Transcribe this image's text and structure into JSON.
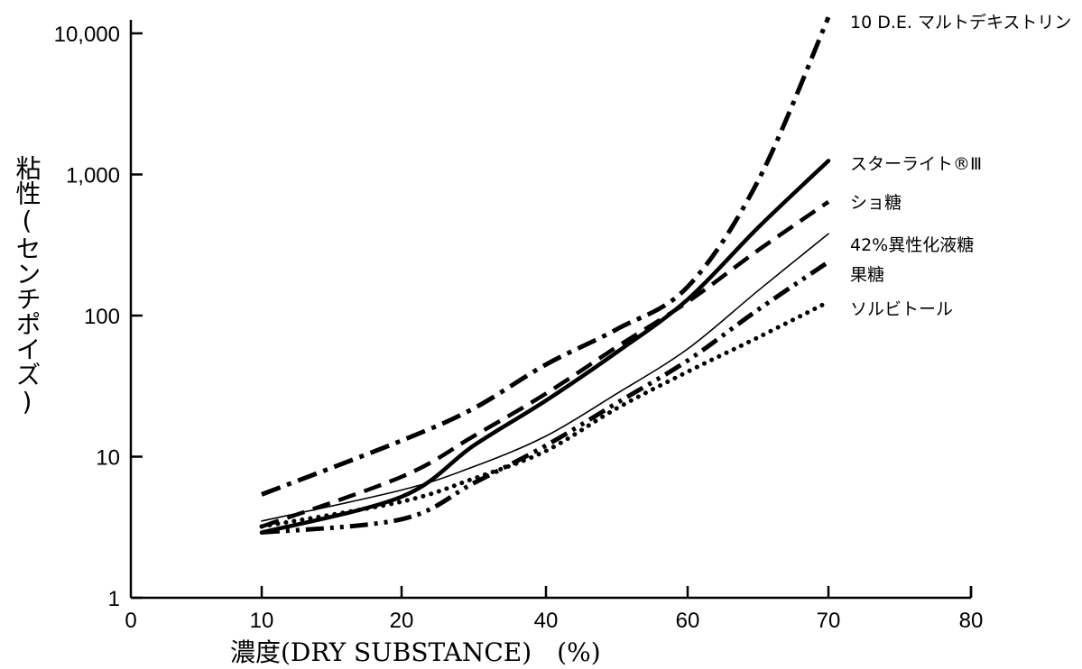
{
  "chart_data": {
    "type": "line",
    "xlabel": "濃度(DRY SUBSTANCE)　(%)",
    "ylabel": "粘性(センチポイズ)",
    "y_scale": "log",
    "ylim": [
      1,
      10000
    ],
    "y_ticks": [
      {
        "value": 1,
        "label": "1"
      },
      {
        "value": 10,
        "label": "10"
      },
      {
        "value": 100,
        "label": "100"
      },
      {
        "value": 1000,
        "label": "1,000"
      },
      {
        "value": 10000,
        "label": "10,000"
      }
    ],
    "x_ticks": [
      {
        "pos": 0,
        "label": "0"
      },
      {
        "pos": 1,
        "label": "10"
      },
      {
        "pos": 2,
        "label": "20"
      },
      {
        "pos": 3,
        "label": "40"
      },
      {
        "pos": 4,
        "label": "60"
      },
      {
        "pos": 5,
        "label": "70"
      },
      {
        "pos": 6,
        "label": "80"
      }
    ],
    "grid": false,
    "legend": "labels at right end of each line",
    "series": [
      {
        "name": "10 D.E. マルトデキストリン",
        "style": "dash-dot",
        "stroke_color": "#000000",
        "points": [
          [
            10,
            5.4
          ],
          [
            20,
            13
          ],
          [
            30,
            22
          ],
          [
            40,
            45
          ],
          [
            50,
            80
          ],
          [
            60,
            160
          ],
          [
            65,
            900
          ],
          [
            70,
            13000
          ]
        ]
      },
      {
        "name": "スターライト®Ⅲ",
        "style": "solid-thick",
        "stroke_color": "#000000",
        "points": [
          [
            10,
            2.9
          ],
          [
            20,
            5.2
          ],
          [
            30,
            12
          ],
          [
            40,
            25
          ],
          [
            50,
            55
          ],
          [
            60,
            130
          ],
          [
            65,
            420
          ],
          [
            70,
            1250
          ]
        ]
      },
      {
        "name": "ショ糖",
        "style": "dashed",
        "stroke_color": "#000000",
        "points": [
          [
            10,
            3.2
          ],
          [
            20,
            7.2
          ],
          [
            30,
            14
          ],
          [
            40,
            28
          ],
          [
            50,
            60
          ],
          [
            60,
            125
          ],
          [
            65,
            290
          ],
          [
            70,
            640
          ]
        ]
      },
      {
        "name": "42%異性化液糖",
        "style": "solid-thin",
        "stroke_color": "#000000",
        "points": [
          [
            10,
            3.5
          ],
          [
            20,
            5.8
          ],
          [
            30,
            8.5
          ],
          [
            40,
            14
          ],
          [
            50,
            28
          ],
          [
            60,
            58
          ],
          [
            65,
            150
          ],
          [
            70,
            380
          ]
        ]
      },
      {
        "name": "果糖",
        "style": "dash-dot-dot",
        "stroke_color": "#000000",
        "points": [
          [
            10,
            2.9
          ],
          [
            20,
            3.6
          ],
          [
            30,
            6.5
          ],
          [
            40,
            12
          ],
          [
            50,
            24
          ],
          [
            60,
            48
          ],
          [
            65,
            110
          ],
          [
            70,
            240
          ]
        ]
      },
      {
        "name": "ソルビトール",
        "style": "dotted",
        "stroke_color": "#000000",
        "points": [
          [
            10,
            3.2
          ],
          [
            20,
            4.8
          ],
          [
            30,
            7
          ],
          [
            40,
            11
          ],
          [
            50,
            22
          ],
          [
            60,
            40
          ],
          [
            65,
            70
          ],
          [
            70,
            125
          ]
        ]
      }
    ]
  }
}
